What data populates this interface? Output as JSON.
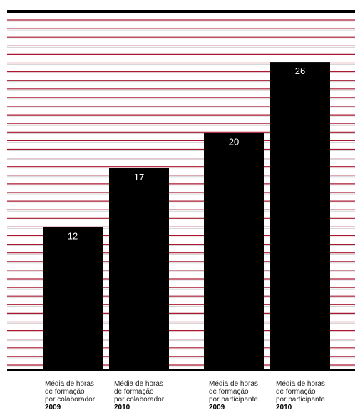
{
  "chart_data": {
    "type": "bar",
    "title": "",
    "xlabel": "",
    "ylabel": "",
    "ylim": [
      0,
      30
    ],
    "grid": true,
    "categories": [
      {
        "lines": [
          "Média de horas",
          "de formação",
          "por colaborador"
        ],
        "year": "2009"
      },
      {
        "lines": [
          "Média de horas",
          "de formação",
          "por colaborador"
        ],
        "year": "2010"
      },
      {
        "lines": [
          "Média de horas",
          "de formação",
          "por participante"
        ],
        "year": "2009"
      },
      {
        "lines": [
          "Média de horas",
          "de formação",
          "por participante"
        ],
        "year": "2010"
      }
    ],
    "values": [
      12,
      17,
      20,
      26
    ],
    "value_labels": [
      "12",
      "17",
      "20",
      "26"
    ]
  },
  "colors": {
    "bar": "#000000",
    "grid_line": "#a81830",
    "grid_line_light": "#c9c9c9",
    "value_label": "#ffffff",
    "top_rule": "#000000",
    "baseline": "#000000"
  }
}
